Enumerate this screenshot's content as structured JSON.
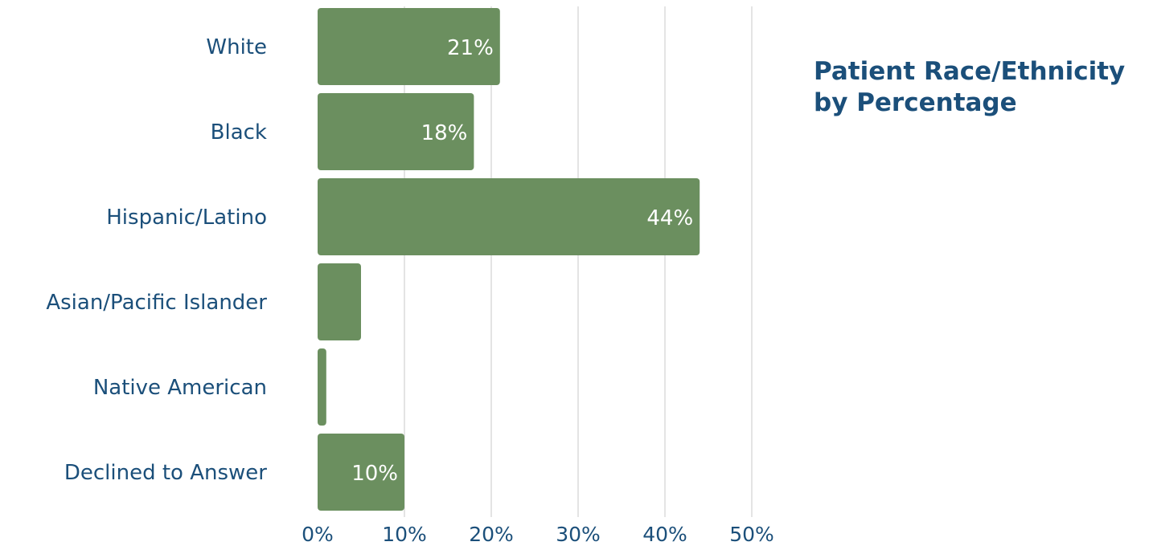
{
  "chart_data": {
    "type": "bar",
    "orientation": "horizontal",
    "title": "Patient Race/Ethnicity by Percentage",
    "title_lines": [
      "Patient Race/Ethnicity",
      "by Percentage"
    ],
    "categories": [
      "White",
      "Black",
      "Hispanic/Latino",
      "Asian/Pacific Islander",
      "Native American",
      "Declined to Answer"
    ],
    "values": [
      21,
      18,
      44,
      5,
      1,
      10
    ],
    "data_labels": [
      "21%",
      "18%",
      "44%",
      "",
      "",
      "10%"
    ],
    "x_ticks": [
      0,
      10,
      20,
      30,
      40,
      50
    ],
    "x_tick_labels": [
      "0%",
      "10%",
      "20%",
      "30%",
      "40%",
      "50%"
    ],
    "xlim": [
      0,
      50
    ],
    "xlabel": "",
    "ylabel": "",
    "grid": "vertical",
    "legend": "none",
    "colors": {
      "bar": "#6b8f5f",
      "label_text": "#1b4f7a",
      "data_label": "#ffffff",
      "grid": "#dcdcdc"
    }
  }
}
